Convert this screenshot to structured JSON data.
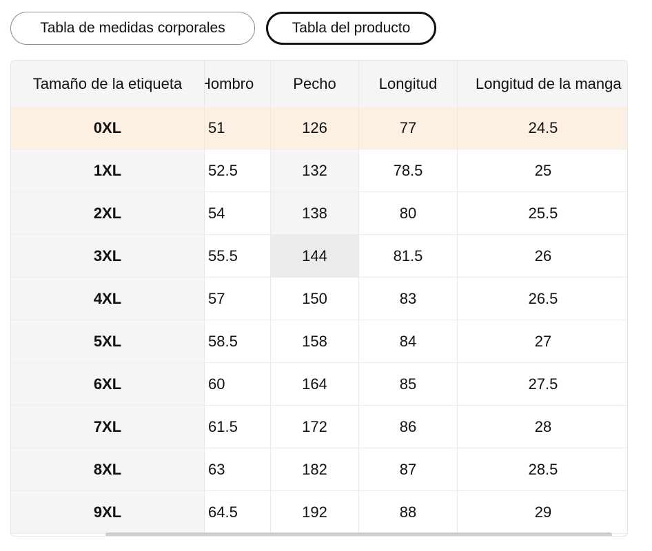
{
  "tabs": {
    "body_label": "Tabla de medidas corporales",
    "product_label": "Tabla del producto"
  },
  "table": {
    "headers": [
      "Tamaño de la etiqueta",
      "Hombro",
      "Pecho",
      "Longitud",
      "Longitud de la manga"
    ],
    "rows": [
      {
        "size": "0XL",
        "shoulder": "51",
        "chest": "126",
        "length": "77",
        "sleeve": "24.5"
      },
      {
        "size": "1XL",
        "shoulder": "52.5",
        "chest": "132",
        "length": "78.5",
        "sleeve": "25"
      },
      {
        "size": "2XL",
        "shoulder": "54",
        "chest": "138",
        "length": "80",
        "sleeve": "25.5"
      },
      {
        "size": "3XL",
        "shoulder": "55.5",
        "chest": "144",
        "length": "81.5",
        "sleeve": "26"
      },
      {
        "size": "4XL",
        "shoulder": "57",
        "chest": "150",
        "length": "83",
        "sleeve": "26.5"
      },
      {
        "size": "5XL",
        "shoulder": "58.5",
        "chest": "158",
        "length": "84",
        "sleeve": "27"
      },
      {
        "size": "6XL",
        "shoulder": "60",
        "chest": "164",
        "length": "85",
        "sleeve": "27.5"
      },
      {
        "size": "7XL",
        "shoulder": "61.5",
        "chest": "172",
        "length": "86",
        "sleeve": "28"
      },
      {
        "size": "8XL",
        "shoulder": "63",
        "chest": "182",
        "length": "87",
        "sleeve": "28.5"
      },
      {
        "size": "9XL",
        "shoulder": "64.5",
        "chest": "192",
        "length": "88",
        "sleeve": "29"
      }
    ]
  },
  "colors": {
    "highlight_row": "#fdf0e3",
    "header_bg": "#f5f5f7",
    "hover_cell": "#ebebeb"
  }
}
